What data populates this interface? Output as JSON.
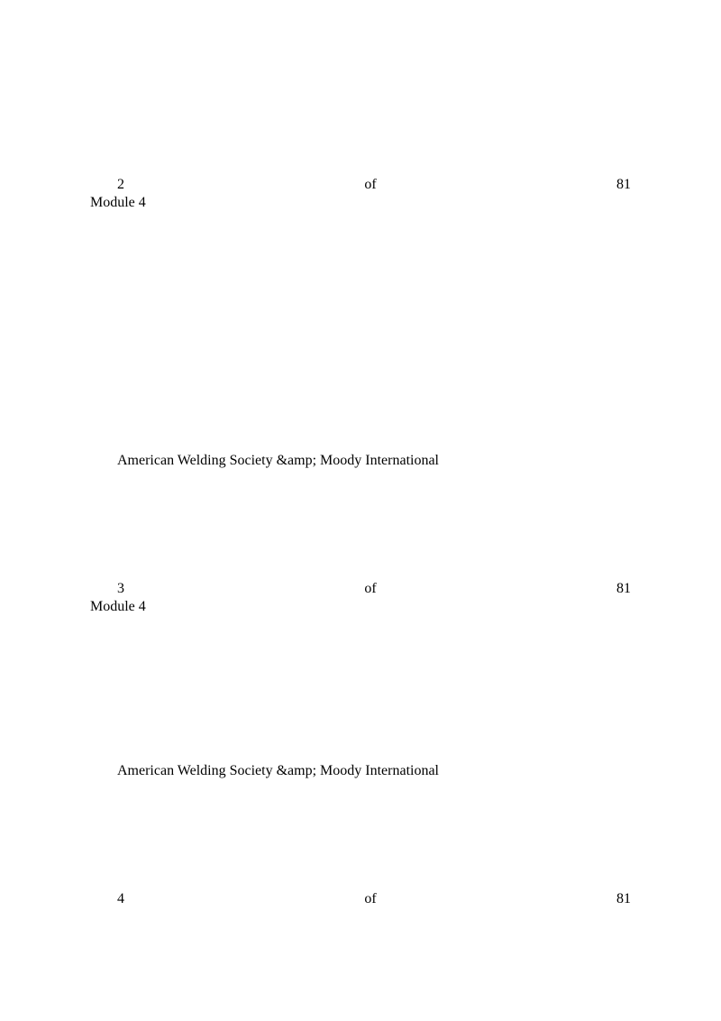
{
  "sections": [
    {
      "page_current": "2",
      "page_separator": "of",
      "page_total": "81",
      "module_label": "Module 4",
      "footer_text": "American Welding Society &amp; Moody International"
    },
    {
      "page_current": "3",
      "page_separator": "of",
      "page_total": "81",
      "module_label": "Module 4",
      "footer_text": "American Welding Society &amp; Moody International"
    },
    {
      "page_current": "4",
      "page_separator": "of",
      "page_total": "81"
    }
  ],
  "styling": {
    "background_color": "#ffffff",
    "text_color": "#000000",
    "font_family": "Times New Roman",
    "font_size": 16
  }
}
